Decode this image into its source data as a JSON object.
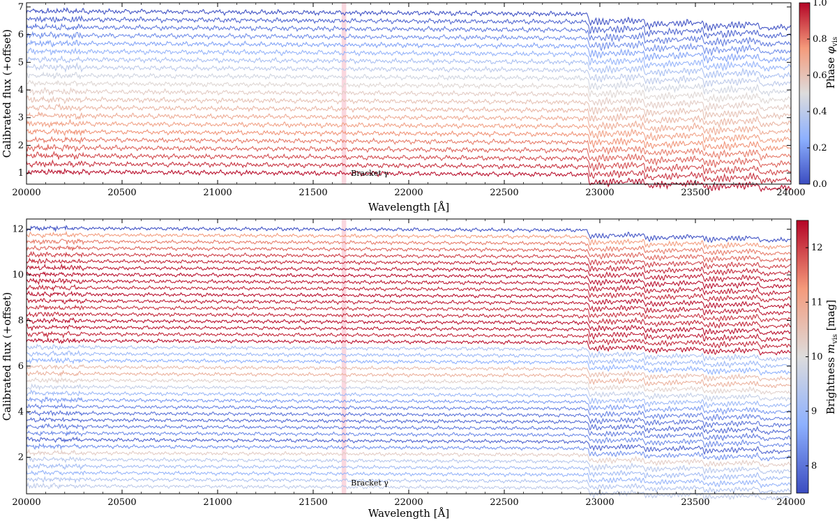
{
  "chart_data": [
    {
      "type": "line",
      "xlabel": "Wavelength [Å]",
      "ylabel": "Calibrated flux (+offset)",
      "xlim": [
        20000,
        24000
      ],
      "ylim": [
        0.6,
        7.15
      ],
      "xticks": [
        20000,
        20500,
        21000,
        21500,
        22000,
        22500,
        23000,
        23500,
        24000
      ],
      "yticks": [
        1,
        2,
        3,
        4,
        5,
        6,
        7
      ],
      "annotation": {
        "text": "Bracket γ",
        "x": 21661
      },
      "colorbar": {
        "label": "Phase φvis",
        "range": [
          0.0,
          1.0
        ],
        "ticks": [
          0.0,
          0.2,
          0.4,
          0.6,
          0.8,
          1.0
        ],
        "colormap": "coolwarm"
      },
      "series_count": 21,
      "offset_range": [
        1.05,
        6.85
      ],
      "series_color_values": [
        0.02,
        0.07,
        0.12,
        0.17,
        0.22,
        0.28,
        0.34,
        0.4,
        0.46,
        0.52,
        0.56,
        0.6,
        0.64,
        0.68,
        0.72,
        0.76,
        0.8,
        0.84,
        0.88,
        0.92,
        0.98
      ]
    },
    {
      "type": "line",
      "xlabel": "Wavelength [Å]",
      "ylabel": "Calibrated flux (+offset)",
      "xlim": [
        20000,
        24000
      ],
      "ylim": [
        0.4,
        12.45
      ],
      "xticks": [
        20000,
        20500,
        21000,
        21500,
        22000,
        22500,
        23000,
        23500,
        24000
      ],
      "yticks": [
        2,
        4,
        6,
        8,
        10,
        12
      ],
      "annotation": {
        "text": "Bracket γ",
        "x": 21661
      },
      "colorbar": {
        "label": "Brightness mvis [mag]",
        "range": [
          7.5,
          12.5
        ],
        "ticks": [
          8,
          9,
          10,
          11,
          12
        ],
        "colormap": "coolwarm"
      },
      "series_count": 40,
      "offset_range": [
        0.75,
        12.05
      ],
      "series_color_values": [
        7.6,
        11.2,
        11.5,
        11.7,
        12.0,
        12.2,
        12.3,
        12.4,
        12.3,
        12.2,
        12.4,
        12.3,
        12.1,
        12.2,
        12.4,
        12.3,
        12.2,
        12.4,
        9.2,
        9.0,
        8.8,
        10.6,
        10.8,
        10.2,
        9.6,
        9.0,
        8.5,
        8.2,
        8.0,
        7.9,
        8.1,
        8.3,
        7.8,
        8.4,
        10.3,
        9.4,
        9.1,
        8.9,
        9.3,
        9.5
      ]
    }
  ],
  "colors": {
    "bracket_band": "#f4a7b9",
    "cmap_low": "#3b4cc0",
    "cmap_mid": "#dddcdc",
    "cmap_high": "#b40426"
  }
}
